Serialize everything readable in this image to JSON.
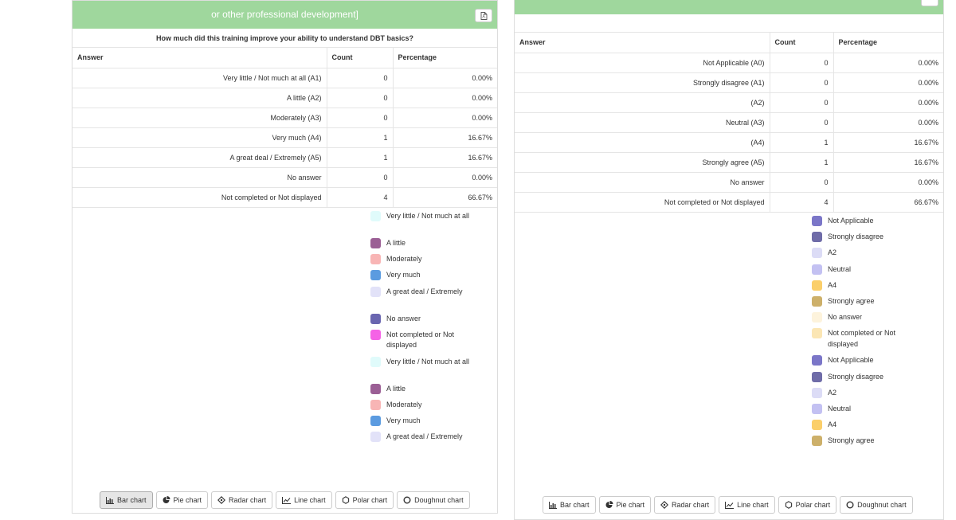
{
  "left": {
    "header_title": "or other professional development]",
    "question": "How much did this training improve your ability to understand DBT basics?",
    "columns": {
      "answer": "Answer",
      "count": "Count",
      "percentage": "Percentage"
    },
    "rows": [
      {
        "answer": "Very little / Not much at all (A1)",
        "count": "0",
        "percentage": "0.00%"
      },
      {
        "answer": "A little (A2)",
        "count": "0",
        "percentage": "0.00%"
      },
      {
        "answer": "Moderately (A3)",
        "count": "0",
        "percentage": "0.00%"
      },
      {
        "answer": "Very much (A4)",
        "count": "1",
        "percentage": "16.67%"
      },
      {
        "answer": "A great deal / Extremely (A5)",
        "count": "1",
        "percentage": "16.67%"
      },
      {
        "answer": "No answer",
        "count": "0",
        "percentage": "0.00%"
      },
      {
        "answer": "Not completed or Not displayed",
        "count": "4",
        "percentage": "66.67%"
      }
    ],
    "legend": [
      {
        "label": "Very little / Not much at all",
        "color": "#e0fbfb"
      },
      {
        "label": "A little",
        "color": "#9b5f95"
      },
      {
        "label": "Moderately",
        "color": "#f8b5b5"
      },
      {
        "label": "Very much",
        "color": "#5b9be0"
      },
      {
        "label": "A great deal / Extremely",
        "color": "#e2e2f8"
      },
      {
        "label": "No answer",
        "color": "#6a66b0"
      },
      {
        "label": "Not completed or Not displayed",
        "color": "#f562e6"
      },
      {
        "label": "Very little / Not much at all",
        "color": "#e0fbfb"
      },
      {
        "label": "A little",
        "color": "#9b5f95"
      },
      {
        "label": "Moderately",
        "color": "#f8b5b5"
      },
      {
        "label": "Very much",
        "color": "#5b9be0"
      },
      {
        "label": "A great deal / Extremely",
        "color": "#e2e2f8"
      }
    ],
    "chart_buttons": [
      {
        "label": "Bar chart",
        "icon": "bar-chart-icon",
        "active": true
      },
      {
        "label": "Pie chart",
        "icon": "pie-chart-icon",
        "active": false
      },
      {
        "label": "Radar chart",
        "icon": "radar-chart-icon",
        "active": false
      },
      {
        "label": "Line chart",
        "icon": "line-chart-icon",
        "active": false
      },
      {
        "label": "Polar chart",
        "icon": "polar-chart-icon",
        "active": false
      },
      {
        "label": "Doughnut chart",
        "icon": "doughnut-chart-icon",
        "active": false
      }
    ]
  },
  "right": {
    "columns": {
      "answer": "Answer",
      "count": "Count",
      "percentage": "Percentage"
    },
    "rows": [
      {
        "answer": "Not Applicable (A0)",
        "count": "0",
        "percentage": "0.00%"
      },
      {
        "answer": "Strongly disagree (A1)",
        "count": "0",
        "percentage": "0.00%"
      },
      {
        "answer": "(A2)",
        "count": "0",
        "percentage": "0.00%"
      },
      {
        "answer": "Neutral (A3)",
        "count": "0",
        "percentage": "0.00%"
      },
      {
        "answer": "(A4)",
        "count": "1",
        "percentage": "16.67%"
      },
      {
        "answer": "Strongly agree (A5)",
        "count": "1",
        "percentage": "16.67%"
      },
      {
        "answer": "No answer",
        "count": "0",
        "percentage": "0.00%"
      },
      {
        "answer": "Not completed or Not displayed",
        "count": "4",
        "percentage": "66.67%"
      }
    ],
    "legend": [
      {
        "label": "Not Applicable",
        "color": "#7b76c8"
      },
      {
        "label": "Strongly disagree",
        "color": "#6f6ca8"
      },
      {
        "label": "A2",
        "color": "#dcdcf6"
      },
      {
        "label": "Neutral",
        "color": "#c3c1f2"
      },
      {
        "label": "A4",
        "color": "#fbcf6a"
      },
      {
        "label": "Strongly agree",
        "color": "#cdb06a"
      },
      {
        "label": "No answer",
        "color": "#fdf3dc"
      },
      {
        "label": "Not completed or Not displayed",
        "color": "#fbe6b4"
      },
      {
        "label": "Not Applicable",
        "color": "#7b76c8"
      },
      {
        "label": "Strongly disagree",
        "color": "#6f6ca8"
      },
      {
        "label": "A2",
        "color": "#dcdcf6"
      },
      {
        "label": "Neutral",
        "color": "#c3c1f2"
      },
      {
        "label": "A4",
        "color": "#fbcf6a"
      },
      {
        "label": "Strongly agree",
        "color": "#cdb06a"
      }
    ],
    "chart_buttons": [
      {
        "label": "Bar chart",
        "icon": "bar-chart-icon",
        "active": false
      },
      {
        "label": "Pie chart",
        "icon": "pie-chart-icon",
        "active": false
      },
      {
        "label": "Radar chart",
        "icon": "radar-chart-icon",
        "active": false
      },
      {
        "label": "Line chart",
        "icon": "line-chart-icon",
        "active": false
      },
      {
        "label": "Polar chart",
        "icon": "polar-chart-icon",
        "active": false
      },
      {
        "label": "Doughnut chart",
        "icon": "doughnut-chart-icon",
        "active": false
      }
    ]
  },
  "header_color": "#9fd79d"
}
